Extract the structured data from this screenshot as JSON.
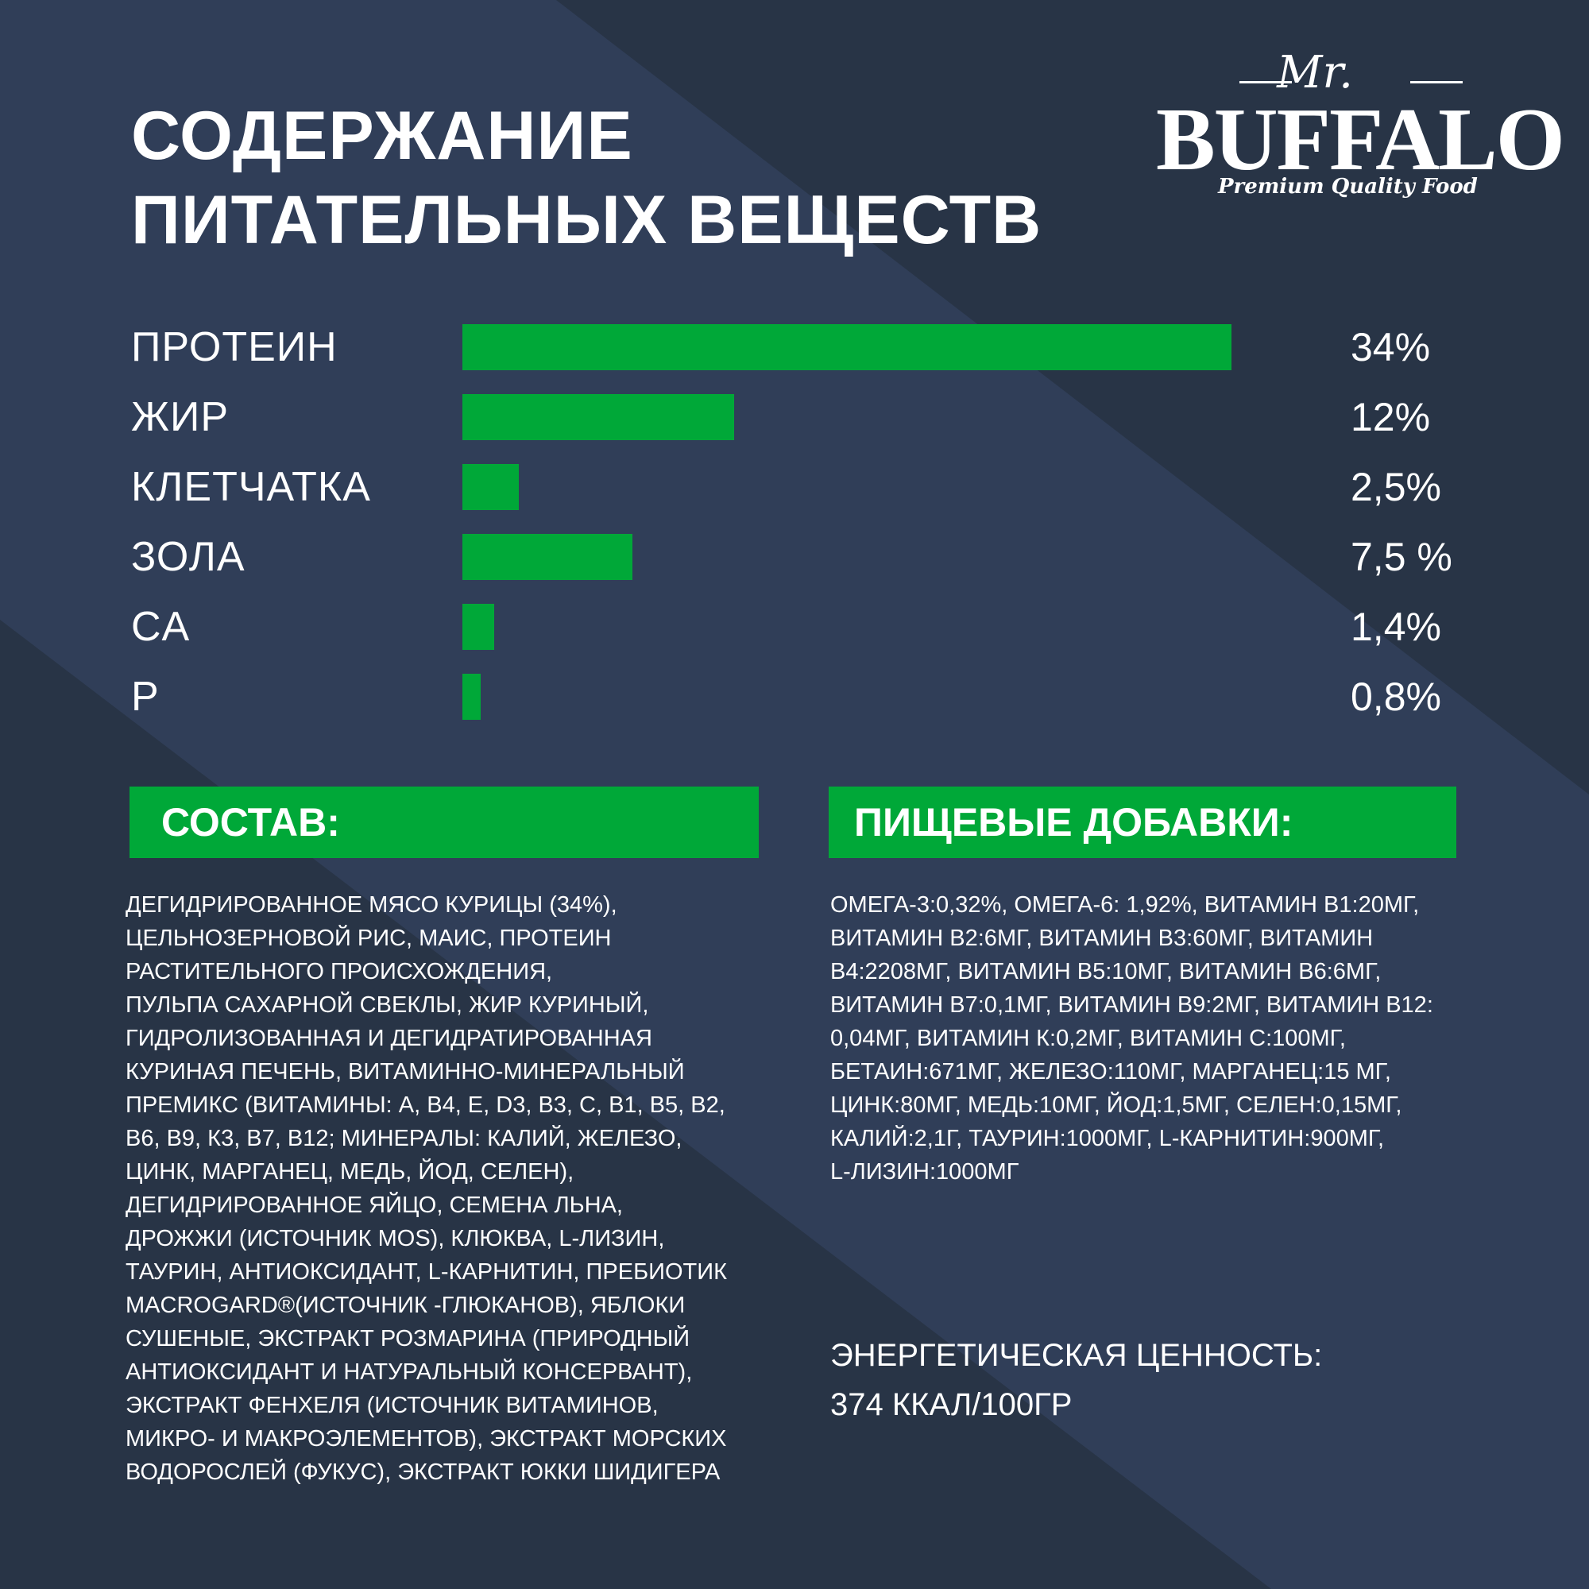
{
  "colors": {
    "background_dark": "#283446",
    "background_light": "#303e58",
    "accent_green": "#00a838",
    "text": "#ffffff"
  },
  "title_lines": [
    "СОДЕРЖАНИЕ",
    "ПИТАТЕЛЬНЫХ ВЕЩЕСТВ"
  ],
  "logo": {
    "mr": "Mr.",
    "brand": "BUFFALO",
    "tagline": "Premium Quality Food"
  },
  "chart_data": {
    "type": "bar",
    "orientation": "horizontal",
    "categories": [
      "ПРОТЕИН",
      "ЖИР",
      "КЛЕТЧАТКА",
      "ЗОЛА",
      "CA",
      "P"
    ],
    "values": [
      34,
      12,
      2.5,
      7.5,
      1.4,
      0.8
    ],
    "value_labels": [
      "34%",
      "12%",
      "2,5%",
      "7,5 %",
      "1,4%",
      "0,8%"
    ],
    "unit": "%",
    "grid": false,
    "legend": "none"
  },
  "composition": {
    "heading": "СОСТАВ:",
    "lines": [
      "ДЕГИДРИРОВАННОЕ МЯСО КУРИЦЫ (34%),",
      "ЦЕЛЬНОЗЕРНОВОЙ РИС, МАИС, ПРОТЕИН",
      "РАСТИТЕЛЬНОГО ПРОИСХОЖДЕНИЯ,",
      "ПУЛЬПА САХАРНОЙ СВЕКЛЫ, ЖИР КУРИНЫЙ,",
      "ГИДРОЛИЗОВАННАЯ И ДЕГИДРАТИРОВАННАЯ",
      "КУРИНАЯ ПЕЧЕНЬ, ВИТАМИННО-МИНЕРАЛЬНЫЙ",
      "ПРЕМИКС (ВИТАМИНЫ: А, В4, Е, D3, В3, С, В1, В5, В2,",
      "В6, В9, К3, В7, В12; МИНЕРАЛЫ: КАЛИЙ, ЖЕЛЕЗО,",
      "ЦИНК, МАРГАНЕЦ, МЕДЬ, ЙОД, СЕЛЕН),",
      "ДЕГИДРИРОВАННОЕ ЯЙЦО, СЕМЕНА ЛЬНА,",
      "ДРОЖЖИ (ИСТОЧНИК MOS), КЛЮКВА, L-ЛИЗИН,",
      "ТАУРИН, АНТИОКСИДАНТ, L-КАРНИТИН, ПРЕБИОТИК",
      "MACROGARD®(ИСТОЧНИК  -ГЛЮКАНОВ), ЯБЛОКИ",
      "СУШЕНЫЕ, ЭКСТРАКТ РОЗМАРИНА (ПРИРОДНЫЙ",
      "АНТИОКСИДАНТ И НАТУРАЛЬНЫЙ КОНСЕРВАНТ),",
      "ЭКСТРАКТ ФЕНХЕЛЯ (ИСТОЧНИК ВИТАМИНОВ,",
      "МИКРО- И МАКРОЭЛЕМЕНТОВ), ЭКСТРАКТ МОРСКИХ",
      "ВОДОРОСЛЕЙ (ФУКУС), ЭКСТРАКТ ЮККИ ШИДИГЕРА"
    ]
  },
  "additives": {
    "heading": "ПИЩЕВЫЕ ДОБАВКИ:",
    "lines": [
      "ОМЕГА-3:0,32%, ОМЕГА-6: 1,92%, ВИТАМИН В1:20МГ,",
      "ВИТАМИН В2:6МГ, ВИТАМИН В3:60МГ, ВИТАМИН",
      "В4:2208МГ, ВИТАМИН В5:10МГ, ВИТАМИН В6:6МГ,",
      "ВИТАМИН В7:0,1МГ, ВИТАМИН В9:2МГ, ВИТАМИН В12:",
      "0,04МГ, ВИТАМИН К:0,2МГ, ВИТАМИН С:100МГ,",
      "БЕТАИН:671МГ, ЖЕЛЕЗО:110МГ, МАРГАНЕЦ:15 МГ,",
      "ЦИНК:80МГ, МЕДЬ:10МГ, ЙОД:1,5МГ, СЕЛЕН:0,15МГ,",
      "КАЛИЙ:2,1Г, ТАУРИН:1000МГ, L-КАРНИТИН:900МГ,",
      "L-ЛИЗИН:1000МГ"
    ]
  },
  "energy": {
    "label": "ЭНЕРГЕТИЧЕСКАЯ ЦЕННОСТЬ:",
    "value": "374 ККАЛ/100ГР"
  }
}
